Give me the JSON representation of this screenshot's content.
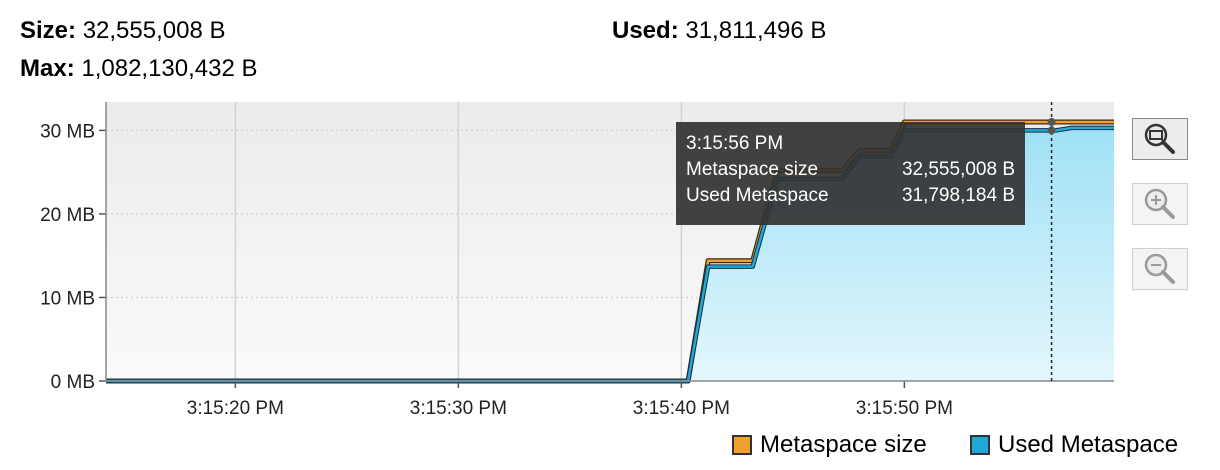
{
  "stats": {
    "size_label": "Size:",
    "size_value": "32,555,008 B",
    "used_label": "Used:",
    "used_value": "31,811,496 B",
    "max_label": "Max:",
    "max_value": "1,082,130,432 B"
  },
  "tooltip": {
    "time": "3:15:56 PM",
    "rows": [
      {
        "label": "Metaspace size",
        "value": "32,555,008 B"
      },
      {
        "label": "Used Metaspace",
        "value": "31,798,184 B"
      }
    ]
  },
  "zoom_buttons": [
    {
      "name": "zoom-fit-button",
      "icon": "zoom-fit-icon",
      "active": true
    },
    {
      "name": "zoom-in-button",
      "icon": "zoom-in-icon",
      "active": false
    },
    {
      "name": "zoom-out-button",
      "icon": "zoom-out-icon",
      "active": false
    }
  ],
  "colors": {
    "metaspace_size": "#f0a030",
    "used_metaspace": "#1fa8d8",
    "used_fill_top": "#9fe0f5",
    "used_fill_bottom": "#e3f7fd",
    "plot_bg_top": "#ebebeb",
    "plot_bg_bottom": "#fafafa",
    "grid": "#d4d4d4"
  },
  "chart_data": {
    "type": "area",
    "x_unit": "time (3:15 PM, seconds)",
    "x_ticks": [
      {
        "sec": 20,
        "label": "3:15:20 PM"
      },
      {
        "sec": 30,
        "label": "3:15:30 PM"
      },
      {
        "sec": 40,
        "label": "3:15:40 PM"
      },
      {
        "sec": 50,
        "label": "3:15:50 PM"
      }
    ],
    "y_ticks": [
      {
        "value": 0,
        "label": "0 MB"
      },
      {
        "value": 10,
        "label": "10 MB"
      },
      {
        "value": 20,
        "label": "20 MB"
      },
      {
        "value": 30,
        "label": "30 MB"
      }
    ],
    "xlim": [
      14.2,
      59.4
    ],
    "ylim": [
      0,
      33.4
    ],
    "crosshair_sec": 56.6,
    "series": [
      {
        "name": "Metaspace size",
        "key": "metaspace_size",
        "x": [
          14.2,
          40.3,
          41.2,
          43.2,
          44.3,
          47.2,
          48.0,
          49.4,
          50.0,
          59.4
        ],
        "y": [
          0,
          0,
          14.4,
          14.4,
          25.2,
          25.2,
          27.6,
          27.6,
          31.0,
          31.0
        ]
      },
      {
        "name": "Used Metaspace",
        "key": "used_metaspace",
        "x": [
          14.2,
          40.3,
          41.2,
          43.2,
          44.3,
          47.2,
          48.0,
          49.4,
          50.0,
          56.8,
          57.5,
          59.4
        ],
        "y": [
          0,
          0,
          13.7,
          13.7,
          24.2,
          24.2,
          26.9,
          26.9,
          30.0,
          30.0,
          30.3,
          30.3
        ]
      }
    ]
  }
}
